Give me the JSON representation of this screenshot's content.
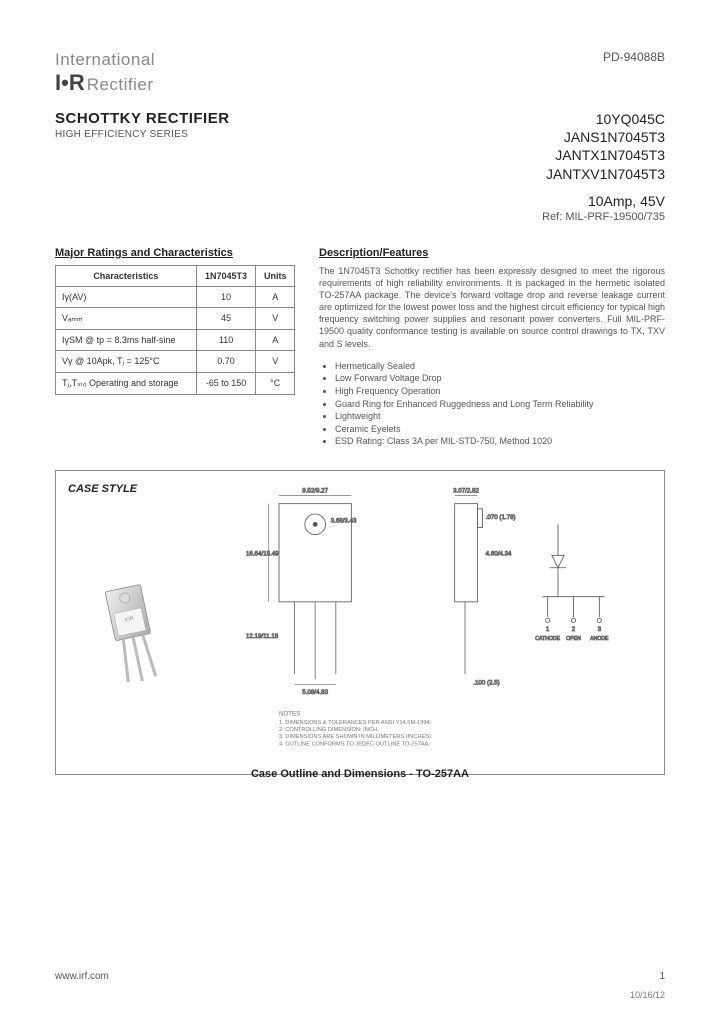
{
  "doc_number": "PD-94088B",
  "logo": {
    "line1": "International",
    "ior": "I•R",
    "rect": "Rectifier"
  },
  "title": {
    "main": "SCHOTTKY RECTIFIER",
    "sub": "HIGH EFFICIENCY SERIES"
  },
  "part_numbers": [
    "10YQ045C",
    "JANS1N7045T3",
    "JANTX1N7045T3",
    "JANTXV1N7045T3"
  ],
  "rating_line": "10Amp, 45V",
  "ref_line": "Ref: MIL-PRF-19500/735",
  "ratings": {
    "title": "Major Ratings and Characteristics",
    "headers": [
      "Characteristics",
      "1N7045T3",
      "Units"
    ],
    "rows": [
      [
        "Iγ(AV)",
        "10",
        "A"
      ],
      [
        "Vₐₘₘ",
        "45",
        "V"
      ],
      [
        "IγSM @ tp = 8.3ms half-sine",
        "110",
        "A"
      ],
      [
        "Vγ @ 10Apk, Tⱼ = 125°C",
        "0.70",
        "V"
      ],
      [
        "Tⱼ,Tₛₜₒ Operating and storage",
        "-65 to 150",
        "°C"
      ]
    ]
  },
  "desc": {
    "title": "Description/Features",
    "text": "The 1N7045T3 Schottky rectifier has been expressly designed to meet the rigorous requirements of high reliability environments. It is packaged in the hermetic isolated TO-257AA package. The device's forward voltage drop and reverse leakage current are optimized for the lowest power loss and the highest circuit efficiency for typical high frequency switching power supplies and resonant power converters. Full MIL-PRF-19500 quality conformance testing is available on source control drawings to TX, TXV and S levels.",
    "features": [
      "Hermetically Sealed",
      "Low Forward Voltage Drop",
      "High Frequency Operation",
      "Guard Ring for Enhanced Ruggedness and Long Term Reliability",
      "Lightweight",
      "Ceramic Eyelets",
      "ESD Rating: Class 3A per MIL-STD-750, Method 1020"
    ]
  },
  "case": {
    "label": "CASE STYLE",
    "caption": "Case Outline and Dimensions - TO-257AA",
    "notes_title": "NOTES",
    "notes": [
      "1. DIMENSIONS & TOLERANCES PER ANSI Y14.5M-1994.",
      "2. CONTROLLING DIMENSION: INCH.",
      "3. DIMENSIONS ARE SHOWN IN MILLIMETERS (INCHES).",
      "4. OUTLINE CONFORMS TO JEDEC OUTLINE TO-257AA."
    ],
    "pins": [
      "CATHODE",
      "OPEN",
      "ANODE"
    ],
    "dims": {
      "top_w": "9.52/9.27",
      "hole": "3.68/3.43",
      "body_h": "16.64/15.49",
      "lead_sp": "5.08/4.83",
      "tab": ".070 (1.78)",
      "side_w": "3.07/2.82",
      "side_h": "4.60/4.34",
      "lead_l": "12.19/11.18",
      "thick": ".100 (2.5)"
    }
  },
  "footer": {
    "url": "www.irf.com",
    "page": "1",
    "date": "10/16/12"
  },
  "colors": {
    "text": "#333333",
    "muted": "#888888",
    "border": "#888888"
  }
}
